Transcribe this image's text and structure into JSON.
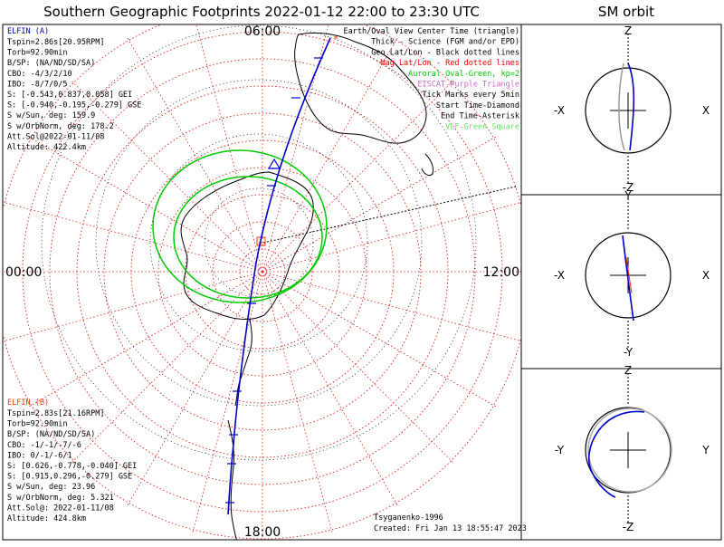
{
  "title": "Southern Geographic Footprints 2022-01-12 22:00 to 23:30 UTC",
  "sm_title": "SM orbit",
  "time_labels": {
    "top": "06:00",
    "left": "00:00",
    "right": "12:00",
    "bottom": "18:00"
  },
  "legend": [
    {
      "text": "Earth/Oval View Center Time (triangle)",
      "color": "#000000"
    },
    {
      "text": "Thick - Science (FGM and/or EPD)",
      "color": "#000000"
    },
    {
      "text": "Geo Lat/Lon - Black dotted lines",
      "color": "#000000"
    },
    {
      "text": "Mag Lat/Lon - Red dotted lines",
      "color": "#ff0000"
    },
    {
      "text": "Auroral Oval-Green, kp=2",
      "color": "#00cc00"
    },
    {
      "text": "EISCAT-Purple Triangle",
      "color": "#cc66cc"
    },
    {
      "text": "Tick Marks every 5min",
      "color": "#000000"
    },
    {
      "text": "Start Time-Diamond",
      "color": "#000000"
    },
    {
      "text": "End Time-Asterisk",
      "color": "#000000"
    },
    {
      "text": "VLF-Green Square",
      "color": "#66dd66"
    }
  ],
  "elfin_a": {
    "header": "ELFIN (A)",
    "color": "#0000cc",
    "lines": [
      "Tspin=2.86s[20.95RPM]",
      "Torb=92.90min",
      "B/SP: (NA/ND/SD/SA)",
      "CBO: -4/3/2/10",
      "IBO: -8/7/0/5",
      "S: [-0.543,0.837,0.058] GEI",
      "S: [-0.940,-0.195,-0.279] GSE",
      "S w/Sun, deg: 159.9",
      "S w/OrbNorm, deg: 178.2",
      "Att.Sol@2022-01-11/08",
      "Altitude: 422.4km"
    ]
  },
  "elfin_b": {
    "header": "ELFIN (B)",
    "color": "#ff3300",
    "lines": [
      "Tspin=2.83s[21.16RPM]",
      "Torb=92.90min",
      "B/SP: (NA/ND/SD/SA)",
      "CBO: -1/-1/-7/-6",
      "IBO: 0/-1/-6/1",
      "S: [0.626,-0.778,-0.040] GEI",
      "S: [0.915,0.296,-0.279] GSE",
      "S w/Sun, deg: 23.96",
      "S w/OrbNorm, deg: 5.321",
      "Att.Sol@: 2022-01-11/08",
      "Altitude: 424.8km"
    ]
  },
  "footer": {
    "model": "Tsyganenko-1996",
    "created": "Created: Fri Jan 13 18:55:47 2023"
  },
  "sm_panels": [
    {
      "top": "Z",
      "bottom": "-Z",
      "left": "-X",
      "right": "X"
    },
    {
      "top": "Y",
      "bottom": "-Y",
      "left": "-X",
      "right": "X"
    },
    {
      "top": "Z",
      "bottom": "-Z",
      "left": "-Y",
      "right": "Y"
    }
  ],
  "colors": {
    "elfin_a_track": "#0000cc",
    "elfin_b_track": "#ff3300",
    "auroral_oval": "#00cc00",
    "mag_grid": "#ff0000",
    "geo_grid": "#000000",
    "coastline": "#000000"
  },
  "chart_data": {
    "type": "polar-map",
    "projection": "south polar, magnetic local time",
    "time_range": [
      "2022-01-12 22:00",
      "2022-01-12 23:30"
    ],
    "mlt_labels": [
      "06:00",
      "00:00",
      "12:00",
      "18:00"
    ],
    "tick_interval_min": 5,
    "auroral_oval_kp": 2,
    "series": [
      {
        "name": "ELFIN (A) footprint",
        "color": "#0000cc",
        "start": "diamond",
        "end": "asterisk"
      },
      {
        "name": "ELFIN (B) footprint",
        "color": "#ff3300",
        "start": "diamond",
        "end": "asterisk"
      }
    ]
  }
}
